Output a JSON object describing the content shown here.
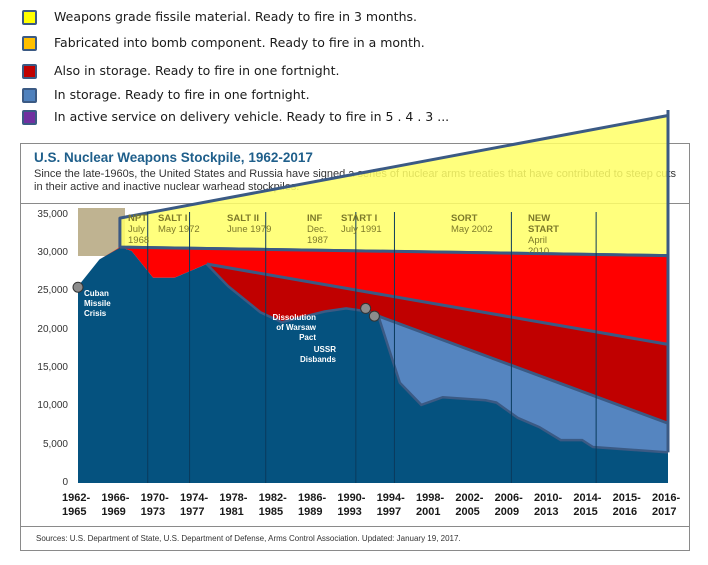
{
  "legend": [
    {
      "label": "Weapons grade fissile material. Ready to fire in 3 months.",
      "color": "#ffff00"
    },
    {
      "label": "Fabricated into bomb component. Ready to fire in a month.",
      "color": "#ffc000"
    },
    {
      "label": "Also in storage. Ready to fire in one fortnight.",
      "color": "#c00000"
    },
    {
      "label": "In storage. Ready to fire in one fortnight.",
      "color": "#4f81bd"
    },
    {
      "label": "In active service on delivery vehicle. Ready to fire in 5 . 4 . 3 ...",
      "color": "#7030a0"
    }
  ],
  "colors": {
    "stockpile": "#05527f",
    "light_blue": "#5585c0",
    "dark_red": "#c00000",
    "red": "#ff0000",
    "yellow": "#ffff66",
    "outline": "#3b5a84",
    "tan": "#bfb391",
    "title": "#1f5f8b"
  },
  "chart_data": {
    "type": "area",
    "title": "U.S. Nuclear Weapons Stockpile, 1962-2017",
    "subtitle": "Since the late-1960s, the United States and Russia have signed a series of nuclear arms treaties that have contributed to steep cuts in their active and inactive nuclear warhead stockpiles.",
    "xlabel": "",
    "ylabel": "",
    "ylim": [
      0,
      35000
    ],
    "yticks": [
      "35,000",
      "30,000",
      "25,000",
      "20,000",
      "15,000",
      "10,000",
      "5,000",
      "0"
    ],
    "ytick_values": [
      35000,
      30000,
      25000,
      20000,
      15000,
      10000,
      5000,
      0
    ],
    "categories": [
      [
        "1962-",
        "1965"
      ],
      [
        "1966-",
        "1969"
      ],
      [
        "1970-",
        "1973"
      ],
      [
        "1974-",
        "1977"
      ],
      [
        "1978-",
        "1981"
      ],
      [
        "1982-",
        "1985"
      ],
      [
        "1986-",
        "1989"
      ],
      [
        "1990-",
        "1993"
      ],
      [
        "1994-",
        "1997"
      ],
      [
        "1998-",
        "2001"
      ],
      [
        "2002-",
        "2005"
      ],
      [
        "2006-",
        "2009"
      ],
      [
        "2010-",
        "2013"
      ],
      [
        "2014-",
        "2015"
      ],
      [
        "2015-",
        "2016"
      ],
      [
        "2016-",
        "2017"
      ]
    ],
    "series": [
      {
        "name": "U.S. stockpile",
        "x": [
          1962,
          1964,
          1966,
          1967,
          1969,
          1971,
          1974,
          1976,
          1979,
          1981,
          1985,
          1987,
          1989,
          1990,
          1992,
          1994,
          1996,
          2000,
          2001,
          2003,
          2005,
          2007,
          2009,
          2010,
          2016,
          2017
        ],
        "values": [
          25700,
          29200,
          30800,
          30300,
          26800,
          26800,
          28600,
          25700,
          22300,
          21000,
          22400,
          22800,
          22400,
          21800,
          13100,
          10200,
          11200,
          10800,
          10500,
          8500,
          7300,
          5600,
          5600,
          4700,
          4100,
          4000
        ]
      },
      {
        "name": "In storage (overlay)",
        "x": [
          1990,
          2017
        ],
        "values": [
          21800,
          7800
        ]
      },
      {
        "name": "Also in storage (overlay)",
        "x": [
          1974,
          2017
        ],
        "values": [
          28600,
          18100
        ]
      },
      {
        "name": "Fabricated into bomb component (overlay)",
        "x": [
          1966,
          2017
        ],
        "values": [
          30800,
          29700
        ]
      },
      {
        "name": "Weapons grade fissile material (overlay)",
        "x": [
          1966,
          2017
        ],
        "values": [
          34600,
          48000
        ]
      }
    ],
    "treaties": [
      {
        "name": "NPT",
        "date": "July 1968",
        "lines": [
          "July",
          "1968"
        ]
      },
      {
        "name": "SALT I",
        "date": "May 1972",
        "lines": [
          "May 1972"
        ]
      },
      {
        "name": "SALT II",
        "date": "June 1979",
        "lines": [
          "June 1979"
        ]
      },
      {
        "name": "INF",
        "date": "Dec. 1987",
        "lines": [
          "Dec.",
          "1987"
        ]
      },
      {
        "name": "START I",
        "date": "July 1991",
        "lines": [
          "July 1991"
        ]
      },
      {
        "name": "SORT",
        "date": "May 2002",
        "lines": [
          "May 2002"
        ]
      },
      {
        "name": "NEW START",
        "date": "April 2010",
        "lines": [
          "NEW",
          "START",
          "April",
          "2010"
        ]
      }
    ],
    "annotations": [
      {
        "lines": [
          "Cuban",
          "Missile",
          "Crisis"
        ],
        "x": 1962,
        "y": 25700
      },
      {
        "lines": [
          "Dissolution",
          "of Warsaw",
          "Pact"
        ],
        "x": 1989,
        "y": 22800
      },
      {
        "lines": [
          "USSR",
          "Disbands"
        ],
        "x": 1990,
        "y": 21800
      }
    ],
    "grid": false,
    "legend_position": "top-left"
  },
  "source": "Sources: U.S. Department of State, U.S. Department of Defense, Arms Control Association. Updated: January 19, 2017."
}
